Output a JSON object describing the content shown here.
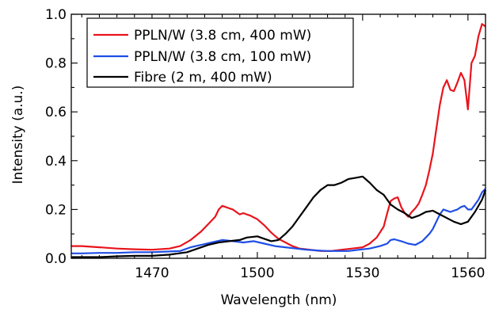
{
  "chart_data": {
    "type": "line",
    "title": "",
    "xlabel": "Wavelength (nm)",
    "ylabel": "Intensity (a.u.)",
    "xlim": [
      1447,
      1565
    ],
    "ylim": [
      0,
      1.0
    ],
    "xticks": [
      1470,
      1500,
      1530,
      1560
    ],
    "xtick_labels": [
      "1470",
      "1500",
      "1530",
      "1560"
    ],
    "yticks": [
      0.0,
      0.2,
      0.4,
      0.6,
      0.8,
      1.0
    ],
    "ytick_labels": [
      "0.0",
      "0.2",
      "0.4",
      "0.6",
      "0.8",
      "1.0"
    ],
    "grid": false,
    "legend_position": "top-left",
    "series": [
      {
        "name": "PPLN/W (3.8 cm, 400 mW)",
        "color": "#e8141c",
        "x": [
          1447,
          1450,
          1455,
          1460,
          1465,
          1470,
          1475,
          1478,
          1481,
          1484,
          1486,
          1488,
          1489,
          1490,
          1491,
          1492,
          1493,
          1494,
          1495,
          1496,
          1497,
          1498,
          1500,
          1502,
          1504,
          1506,
          1508,
          1510,
          1512,
          1515,
          1518,
          1521,
          1524,
          1527,
          1530,
          1532,
          1534,
          1536,
          1537,
          1538,
          1539,
          1540,
          1541,
          1542,
          1543,
          1544,
          1545,
          1546,
          1547,
          1548,
          1549,
          1550,
          1551,
          1552,
          1553,
          1554,
          1555,
          1556,
          1557,
          1558,
          1559,
          1560,
          1561,
          1562,
          1563,
          1564,
          1565
        ],
        "values": [
          0.05,
          0.05,
          0.045,
          0.04,
          0.037,
          0.035,
          0.04,
          0.05,
          0.075,
          0.11,
          0.14,
          0.17,
          0.2,
          0.215,
          0.21,
          0.205,
          0.2,
          0.19,
          0.18,
          0.185,
          0.18,
          0.175,
          0.16,
          0.135,
          0.105,
          0.08,
          0.065,
          0.05,
          0.04,
          0.035,
          0.03,
          0.03,
          0.035,
          0.04,
          0.045,
          0.06,
          0.085,
          0.13,
          0.185,
          0.235,
          0.245,
          0.25,
          0.21,
          0.185,
          0.17,
          0.19,
          0.205,
          0.225,
          0.26,
          0.3,
          0.36,
          0.43,
          0.53,
          0.63,
          0.7,
          0.73,
          0.69,
          0.685,
          0.72,
          0.76,
          0.73,
          0.61,
          0.8,
          0.83,
          0.91,
          0.96,
          0.95
        ]
      },
      {
        "name": "PPLN/W (3.8 cm, 100 mW)",
        "color": "#1f4ee6",
        "x": [
          1447,
          1450,
          1455,
          1460,
          1465,
          1470,
          1475,
          1478,
          1481,
          1484,
          1487,
          1490,
          1493,
          1496,
          1499,
          1502,
          1505,
          1508,
          1511,
          1514,
          1517,
          1520,
          1523,
          1526,
          1529,
          1532,
          1535,
          1537,
          1538,
          1539,
          1541,
          1543,
          1545,
          1547,
          1549,
          1550,
          1551,
          1552,
          1553,
          1554,
          1555,
          1556,
          1557,
          1558,
          1559,
          1560,
          1561,
          1562,
          1563,
          1564,
          1565
        ],
        "values": [
          0.02,
          0.02,
          0.022,
          0.022,
          0.025,
          0.025,
          0.028,
          0.03,
          0.045,
          0.055,
          0.065,
          0.075,
          0.07,
          0.065,
          0.07,
          0.06,
          0.05,
          0.045,
          0.04,
          0.035,
          0.032,
          0.03,
          0.03,
          0.03,
          0.035,
          0.04,
          0.05,
          0.06,
          0.075,
          0.078,
          0.07,
          0.06,
          0.055,
          0.07,
          0.1,
          0.12,
          0.15,
          0.18,
          0.2,
          0.195,
          0.19,
          0.195,
          0.2,
          0.21,
          0.215,
          0.2,
          0.2,
          0.22,
          0.24,
          0.27,
          0.285
        ]
      },
      {
        "name": "Fibre (2 m, 400 mW)",
        "color": "#000000",
        "x": [
          1447,
          1450,
          1455,
          1460,
          1465,
          1470,
          1475,
          1480,
          1483,
          1486,
          1489,
          1492,
          1495,
          1497,
          1500,
          1502,
          1504,
          1506,
          1508,
          1510,
          1512,
          1514,
          1516,
          1518,
          1520,
          1522,
          1524,
          1526,
          1528,
          1530,
          1532,
          1534,
          1536,
          1538,
          1540,
          1542,
          1544,
          1546,
          1548,
          1550,
          1552,
          1554,
          1556,
          1558,
          1560,
          1562,
          1564,
          1565
        ],
        "values": [
          0.005,
          0.005,
          0.005,
          0.008,
          0.01,
          0.01,
          0.015,
          0.025,
          0.04,
          0.055,
          0.065,
          0.07,
          0.075,
          0.085,
          0.09,
          0.08,
          0.07,
          0.075,
          0.1,
          0.13,
          0.17,
          0.21,
          0.25,
          0.28,
          0.3,
          0.3,
          0.31,
          0.325,
          0.33,
          0.335,
          0.31,
          0.28,
          0.26,
          0.22,
          0.2,
          0.185,
          0.165,
          0.175,
          0.19,
          0.195,
          0.18,
          0.165,
          0.15,
          0.14,
          0.15,
          0.19,
          0.24,
          0.28
        ]
      }
    ]
  }
}
